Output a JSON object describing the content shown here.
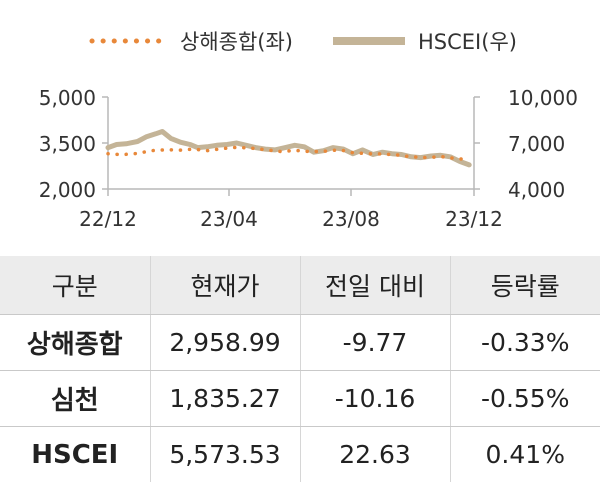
{
  "chart_data": {
    "type": "line",
    "legend_position": "top",
    "x_ticks": [
      "22/12",
      "23/04",
      "23/08",
      "23/12"
    ],
    "y_left": {
      "ticks": [
        "5,000",
        "3,500",
        "2,000"
      ],
      "range": [
        2000,
        5000
      ]
    },
    "y_right": {
      "ticks": [
        "10,000",
        "7,000",
        "4,000"
      ],
      "range": [
        4000,
        10000
      ]
    },
    "series": [
      {
        "name": "상해종합(좌)",
        "axis": "left",
        "color": "#e8883a",
        "style": "dotted",
        "x": [
          "2022-12-01",
          "2022-12-15",
          "2023-01-01",
          "2023-01-15",
          "2023-02-01",
          "2023-02-15",
          "2023-03-01",
          "2023-03-15",
          "2023-04-01",
          "2023-04-15",
          "2023-05-01",
          "2023-05-15",
          "2023-06-01",
          "2023-06-15",
          "2023-07-01",
          "2023-07-15",
          "2023-08-01",
          "2023-08-15",
          "2023-09-01",
          "2023-09-15",
          "2023-10-01",
          "2023-10-15",
          "2023-11-01",
          "2023-11-15",
          "2023-12-01",
          "2023-12-15"
        ],
        "y": [
          3150,
          3120,
          3160,
          3250,
          3280,
          3270,
          3300,
          3250,
          3320,
          3360,
          3330,
          3280,
          3220,
          3260,
          3220,
          3230,
          3280,
          3180,
          3150,
          3140,
          3110,
          3050,
          3020,
          3060,
          2990,
          2960
        ]
      },
      {
        "name": "HSCEI(우)",
        "axis": "right",
        "color": "#c4b497",
        "style": "solid",
        "x": [
          "2022-12-01",
          "2022-12-10",
          "2022-12-20",
          "2023-01-01",
          "2023-01-10",
          "2023-01-20",
          "2023-01-27",
          "2023-02-05",
          "2023-02-15",
          "2023-02-25",
          "2023-03-05",
          "2023-03-15",
          "2023-03-25",
          "2023-04-05",
          "2023-04-15",
          "2023-04-25",
          "2023-05-05",
          "2023-05-15",
          "2023-05-25",
          "2023-06-05",
          "2023-06-15",
          "2023-06-25",
          "2023-07-05",
          "2023-07-15",
          "2023-07-25",
          "2023-08-05",
          "2023-08-15",
          "2023-08-25",
          "2023-09-05",
          "2023-09-15",
          "2023-09-25",
          "2023-10-05",
          "2023-10-15",
          "2023-10-25",
          "2023-11-05",
          "2023-11-15",
          "2023-11-25",
          "2023-12-05",
          "2023-12-15"
        ],
        "y": [
          6700,
          6900,
          6950,
          7100,
          7400,
          7600,
          7750,
          7300,
          7050,
          6900,
          6700,
          6750,
          6850,
          6900,
          7000,
          6850,
          6700,
          6600,
          6550,
          6700,
          6850,
          6750,
          6400,
          6500,
          6700,
          6600,
          6300,
          6550,
          6250,
          6400,
          6300,
          6250,
          6100,
          6050,
          6150,
          6200,
          6100,
          5800,
          5574
        ]
      }
    ]
  },
  "table": {
    "headers": [
      "구분",
      "현재가",
      "전일 대비",
      "등락률"
    ],
    "rows": [
      [
        "상해종합",
        "2,958.99",
        "-9.77",
        "-0.33%"
      ],
      [
        "심천",
        "1,835.27",
        "-10.16",
        "-0.55%"
      ],
      [
        "HSCEI",
        "5,573.53",
        "22.63",
        "0.41%"
      ]
    ]
  }
}
